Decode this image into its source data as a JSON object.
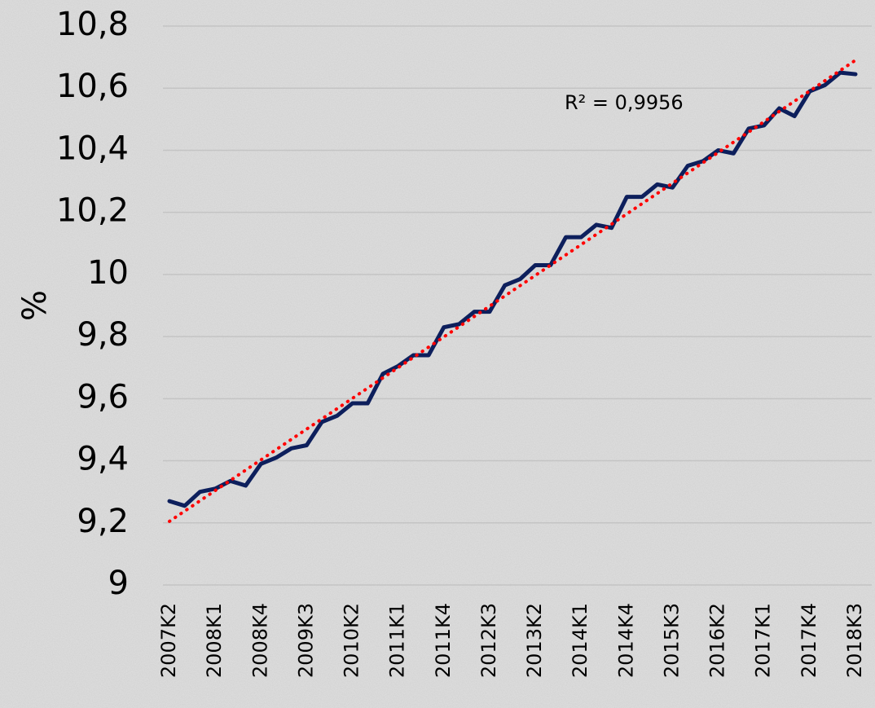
{
  "chart_data": {
    "type": "line",
    "y_label": "%",
    "annotation": "R² = 0,9956",
    "categories": [
      "2007K2",
      null,
      null,
      "2008K1",
      null,
      null,
      "2008K4",
      null,
      null,
      "2009K3",
      null,
      null,
      "2010K2",
      null,
      null,
      "2011K1",
      null,
      null,
      "2011K4",
      null,
      null,
      "2012K3",
      null,
      null,
      "2013K2",
      null,
      null,
      "2014K1",
      null,
      null,
      "2014K4",
      null,
      null,
      "2015K3",
      null,
      null,
      "2016K2",
      null,
      null,
      "2017K1",
      null,
      null,
      "2017K4",
      null,
      null,
      "2018K3"
    ],
    "series": [
      {
        "color": "#0d1f5c",
        "values": [
          9.27,
          9.255,
          9.3,
          9.31,
          9.335,
          9.32,
          9.39,
          9.41,
          9.44,
          9.45,
          9.525,
          9.545,
          9.585,
          9.585,
          9.68,
          9.705,
          9.74,
          9.74,
          9.83,
          9.84,
          9.88,
          9.88,
          9.965,
          9.985,
          10.03,
          10.03,
          10.12,
          10.12,
          10.16,
          10.15,
          10.25,
          10.25,
          10.29,
          10.28,
          10.35,
          10.365,
          10.4,
          10.39,
          10.47,
          10.48,
          10.535,
          10.51,
          10.59,
          10.61,
          10.65,
          10.645
        ]
      },
      {
        "color": "#ff0000",
        "dash": "dotted",
        "values": [
          9.205,
          9.238,
          9.271,
          9.304,
          9.337,
          9.37,
          9.403,
          9.436,
          9.469,
          9.502,
          9.535,
          9.568,
          9.601,
          9.634,
          9.667,
          9.7,
          9.733,
          9.766,
          9.799,
          9.832,
          9.865,
          9.898,
          9.931,
          9.964,
          9.997,
          10.03,
          10.063,
          10.096,
          10.129,
          10.162,
          10.195,
          10.228,
          10.261,
          10.294,
          10.327,
          10.36,
          10.393,
          10.426,
          10.459,
          10.492,
          10.525,
          10.558,
          10.591,
          10.624,
          10.657,
          10.69
        ]
      }
    ],
    "ylim": [
      9,
      10.8
    ],
    "yticks": [
      9,
      {
        "value": 9.2,
        "label": "9,2"
      },
      {
        "value": 9.4,
        "label": "9,4"
      },
      {
        "value": 9.6,
        "label": "9,6"
      },
      {
        "value": 9.8,
        "label": "9,8"
      },
      10,
      {
        "value": 10.2,
        "label": "10,2"
      },
      {
        "value": 10.4,
        "label": "10,4"
      },
      {
        "value": 10.6,
        "label": "10,6"
      },
      {
        "value": 10.8,
        "label": "10,8"
      }
    ],
    "grid": true
  }
}
